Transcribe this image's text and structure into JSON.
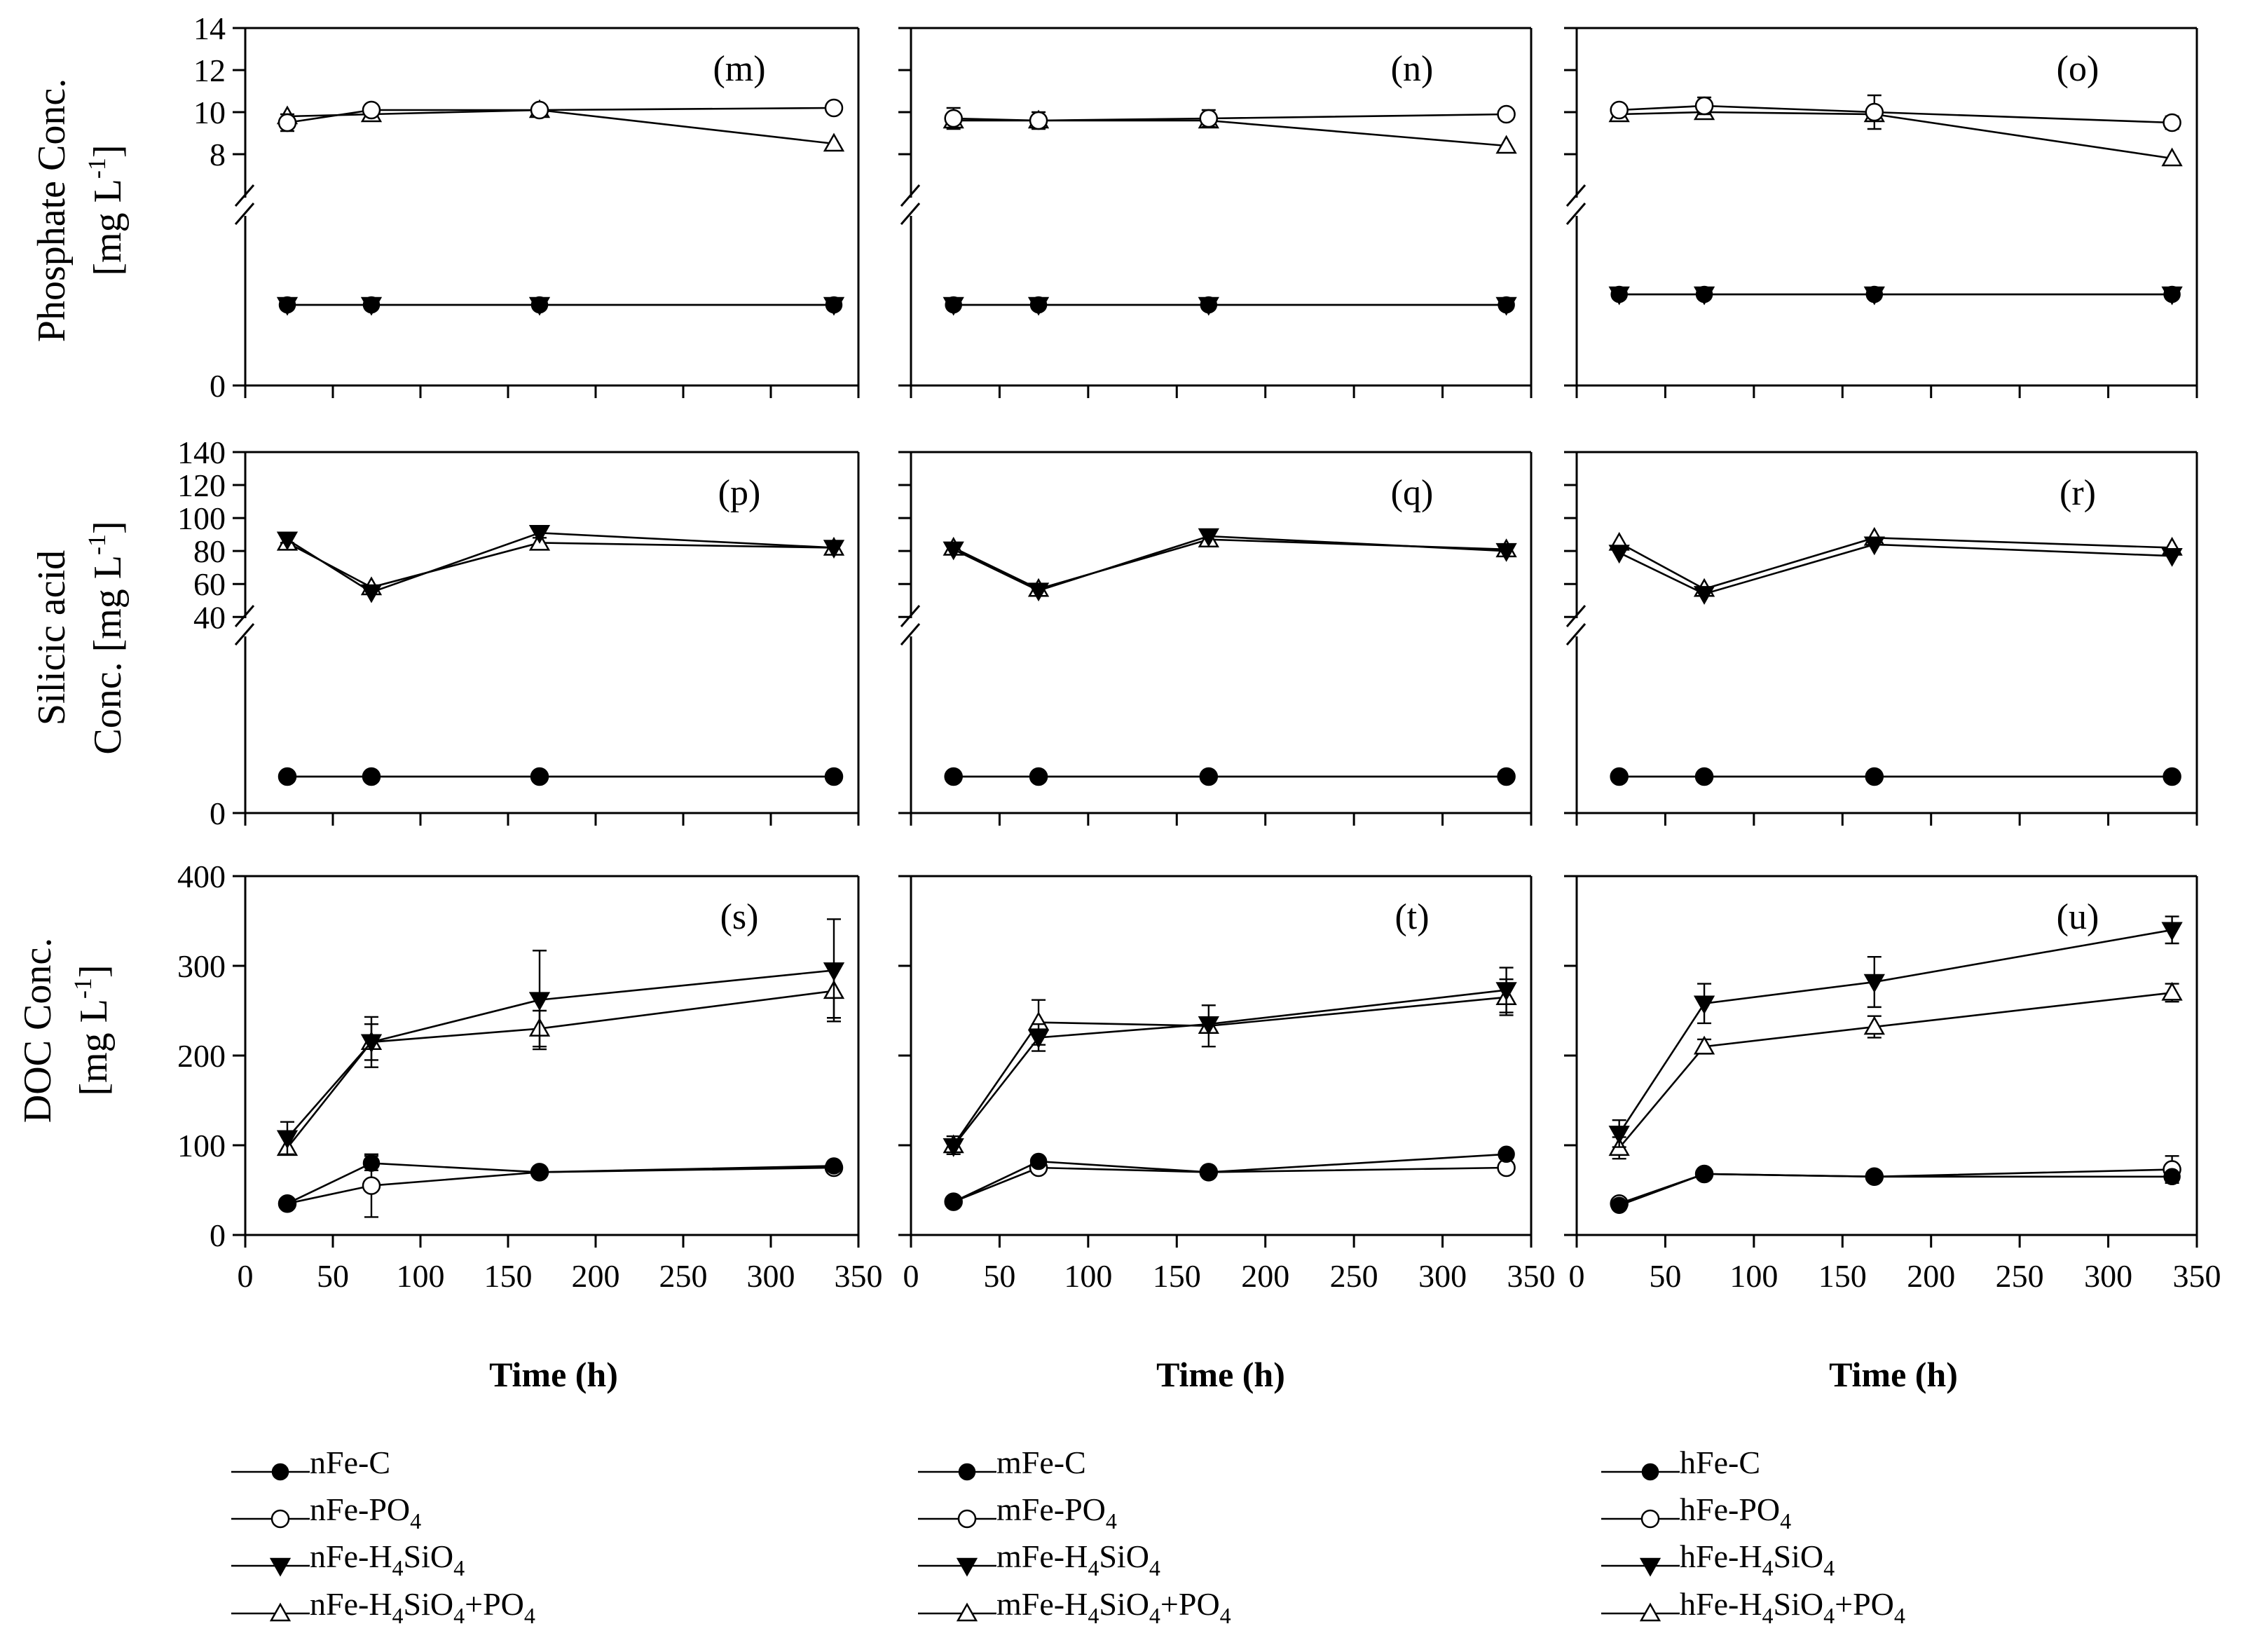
{
  "figure": {
    "x_axis_title": "Time (h)",
    "row_titles": [
      {
        "main": "Phosphate Conc.",
        "unit_pre": "[mg L",
        "unit_sup": "-1",
        "unit_post": "]"
      },
      {
        "main": "Silicic  acid",
        "unit_pre": "Conc. [mg L",
        "unit_sup": "-1",
        "unit_post": "]"
      },
      {
        "main": "DOC Conc.",
        "unit_pre": "[mg L",
        "unit_sup": "-1",
        "unit_post": "]"
      }
    ]
  },
  "chart_data": {
    "type": "line",
    "x": [
      24,
      72,
      168,
      336
    ],
    "xlim": [
      0,
      350
    ],
    "x_ticks": [
      0,
      50,
      100,
      150,
      200,
      250,
      300,
      350
    ],
    "rows": [
      {
        "name": "phosphate",
        "broken_axis": true,
        "upper_range": [
          7,
          14
        ],
        "upper_ticks": [
          8,
          10,
          12,
          14
        ],
        "lower_range": [
          0,
          2.5
        ],
        "lower_ticks": [
          0
        ]
      },
      {
        "name": "silicic",
        "broken_axis": true,
        "upper_range": [
          38,
          140
        ],
        "upper_ticks": [
          40,
          60,
          80,
          100,
          120,
          140
        ],
        "lower_range": [
          0,
          5
        ],
        "lower_ticks": [
          0
        ]
      },
      {
        "name": "doc",
        "broken_axis": false,
        "range": [
          0,
          400
        ],
        "ticks": [
          0,
          100,
          200,
          300,
          400
        ]
      }
    ],
    "panels": [
      {
        "label": "(m)",
        "row": 0,
        "col": 0,
        "series": [
          {
            "name": "nFe-C",
            "marker": "filled-circle",
            "values": [
              1.15,
              1.15,
              1.15,
              1.15
            ],
            "err": [
              0,
              0,
              0,
              0
            ]
          },
          {
            "name": "nFe-PO4",
            "marker": "open-circle",
            "values": [
              9.5,
              10.1,
              10.1,
              10.2
            ],
            "err": [
              0.4,
              0,
              0,
              0
            ]
          },
          {
            "name": "nFe-H4SiO4",
            "marker": "filled-triangle-down",
            "values": [
              1.15,
              1.15,
              1.15,
              1.15
            ],
            "err": [
              0,
              0,
              0,
              0
            ]
          },
          {
            "name": "nFe-H4SiO4+PO4",
            "marker": "open-triangle-up",
            "values": [
              9.8,
              9.9,
              10.1,
              8.5
            ],
            "err": [
              0,
              0,
              0,
              0
            ]
          }
        ]
      },
      {
        "label": "(n)",
        "row": 0,
        "col": 1,
        "series": [
          {
            "name": "mFe-C",
            "marker": "filled-circle",
            "values": [
              1.15,
              1.15,
              1.15,
              1.15
            ],
            "err": [
              0,
              0,
              0,
              0
            ]
          },
          {
            "name": "mFe-PO4",
            "marker": "open-circle",
            "values": [
              9.7,
              9.6,
              9.7,
              9.9
            ],
            "err": [
              0.5,
              0.4,
              0.4,
              0
            ]
          },
          {
            "name": "mFe-H4SiO4",
            "marker": "filled-triangle-down",
            "values": [
              1.15,
              1.15,
              1.15,
              1.15
            ],
            "err": [
              0,
              0,
              0,
              0
            ]
          },
          {
            "name": "mFe-H4SiO4+PO4",
            "marker": "open-triangle-up",
            "values": [
              9.6,
              9.6,
              9.6,
              8.4
            ],
            "err": [
              0,
              0,
              0,
              0
            ]
          }
        ]
      },
      {
        "label": "(o)",
        "row": 0,
        "col": 2,
        "series": [
          {
            "name": "hFe-C",
            "marker": "filled-circle",
            "values": [
              1.3,
              1.3,
              1.3,
              1.3
            ],
            "err": [
              0,
              0,
              0,
              0
            ]
          },
          {
            "name": "hFe-PO4",
            "marker": "open-circle",
            "values": [
              10.1,
              10.3,
              10.0,
              9.5
            ],
            "err": [
              0,
              0.4,
              0.8,
              0.3
            ]
          },
          {
            "name": "hFe-H4SiO4",
            "marker": "filled-triangle-down",
            "values": [
              1.3,
              1.3,
              1.3,
              1.3
            ],
            "err": [
              0,
              0,
              0,
              0
            ]
          },
          {
            "name": "hFe-H4SiO4+PO4",
            "marker": "open-triangle-up",
            "values": [
              9.9,
              10.0,
              9.9,
              7.8
            ],
            "err": [
              0,
              0,
              0,
              0
            ]
          }
        ]
      },
      {
        "label": "(p)",
        "row": 1,
        "col": 0,
        "series": [
          {
            "name": "nFe-C",
            "marker": "filled-circle",
            "values": [
              1.0,
              1.0,
              1.0,
              1.0
            ],
            "err": [
              0,
              0,
              0,
              0
            ]
          },
          {
            "name": "nFe-PO4",
            "marker": "open-circle",
            "values": [
              1.0,
              1.0,
              1.0,
              1.0
            ],
            "err": [
              0,
              0,
              0,
              0
            ]
          },
          {
            "name": "nFe-H4SiO4",
            "marker": "filled-triangle-down",
            "values": [
              87,
              55,
              91,
              82
            ],
            "err": [
              2,
              0,
              3,
              0
            ]
          },
          {
            "name": "nFe-H4SiO4+PO4",
            "marker": "open-triangle-up",
            "values": [
              85,
              58,
              85,
              82
            ],
            "err": [
              0,
              0,
              0,
              0
            ]
          }
        ]
      },
      {
        "label": "(q)",
        "row": 1,
        "col": 1,
        "series": [
          {
            "name": "mFe-C",
            "marker": "filled-circle",
            "values": [
              1.0,
              1.0,
              1.0,
              1.0
            ],
            "err": [
              0,
              0,
              0,
              0
            ]
          },
          {
            "name": "mFe-PO4",
            "marker": "open-circle",
            "values": [
              1.0,
              1.0,
              1.0,
              1.0
            ],
            "err": [
              0,
              0,
              0,
              0
            ]
          },
          {
            "name": "mFe-H4SiO4",
            "marker": "filled-triangle-down",
            "values": [
              81,
              56,
              89,
              80
            ],
            "err": [
              0,
              0,
              0,
              0
            ]
          },
          {
            "name": "mFe-H4SiO4+PO4",
            "marker": "open-triangle-up",
            "values": [
              82,
              57,
              87,
              81
            ],
            "err": [
              0,
              0,
              0,
              0
            ]
          }
        ]
      },
      {
        "label": "(r)",
        "row": 1,
        "col": 2,
        "series": [
          {
            "name": "hFe-C",
            "marker": "filled-circle",
            "values": [
              1.0,
              1.0,
              1.0,
              1.0
            ],
            "err": [
              0,
              0,
              0,
              0
            ]
          },
          {
            "name": "hFe-PO4",
            "marker": "open-circle",
            "values": [
              1.0,
              1.0,
              1.0,
              1.0
            ],
            "err": [
              0,
              0,
              0,
              0
            ]
          },
          {
            "name": "hFe-H4SiO4",
            "marker": "filled-triangle-down",
            "values": [
              79,
              54,
              84,
              77
            ],
            "err": [
              0,
              0,
              0,
              0
            ]
          },
          {
            "name": "hFe-H4SiO4+PO4",
            "marker": "open-triangle-up",
            "values": [
              85,
              57,
              88,
              82
            ],
            "err": [
              0,
              0,
              0,
              0
            ]
          }
        ]
      },
      {
        "label": "(s)",
        "row": 2,
        "col": 0,
        "series": [
          {
            "name": "nFe-C",
            "marker": "filled-circle",
            "values": [
              35,
              80,
              70,
              77
            ],
            "err": [
              0,
              8,
              0,
              0
            ]
          },
          {
            "name": "nFe-PO4",
            "marker": "open-circle",
            "values": [
              35,
              55,
              70,
              75
            ],
            "err": [
              0,
              35,
              0,
              0
            ]
          },
          {
            "name": "nFe-H4SiO4",
            "marker": "filled-triangle-down",
            "values": [
              108,
              215,
              262,
              295
            ],
            "err": [
              18,
              28,
              55,
              57
            ]
          },
          {
            "name": "nFe-H4SiO4+PO4",
            "marker": "open-triangle-up",
            "values": [
              97,
              215,
              230,
              272
            ],
            "err": [
              0,
              20,
              20,
              30
            ]
          }
        ]
      },
      {
        "label": "(t)",
        "row": 2,
        "col": 1,
        "series": [
          {
            "name": "mFe-C",
            "marker": "filled-circle",
            "values": [
              37,
              82,
              70,
              90
            ],
            "err": [
              0,
              0,
              0,
              0
            ]
          },
          {
            "name": "mFe-PO4",
            "marker": "open-circle",
            "values": [
              37,
              75,
              70,
              75
            ],
            "err": [
              0,
              0,
              0,
              0
            ]
          },
          {
            "name": "mFe-H4SiO4",
            "marker": "filled-triangle-down",
            "values": [
              99,
              220,
              235,
              273
            ],
            "err": [
              0,
              15,
              0,
              25
            ]
          },
          {
            "name": "mFe-H4SiO4+PO4",
            "marker": "open-triangle-up",
            "values": [
              100,
              237,
              233,
              265
            ],
            "err": [
              10,
              25,
              23,
              20
            ]
          }
        ]
      },
      {
        "label": "(u)",
        "row": 2,
        "col": 2,
        "series": [
          {
            "name": "hFe-C",
            "marker": "filled-circle",
            "values": [
              33,
              68,
              65,
              65
            ],
            "err": [
              0,
              0,
              0,
              0
            ]
          },
          {
            "name": "hFe-PO4",
            "marker": "open-circle",
            "values": [
              35,
              68,
              65,
              73
            ],
            "err": [
              0,
              0,
              0,
              15
            ]
          },
          {
            "name": "hFe-H4SiO4",
            "marker": "filled-triangle-down",
            "values": [
              113,
              258,
              282,
              340
            ],
            "err": [
              15,
              22,
              28,
              15
            ]
          },
          {
            "name": "hFe-H4SiO4+PO4",
            "marker": "open-triangle-up",
            "values": [
              97,
              210,
              232,
              270
            ],
            "err": [
              12,
              8,
              12,
              10
            ]
          }
        ]
      }
    ],
    "legend": [
      [
        {
          "base": "nFe-C",
          "sub1": "",
          "mid": "",
          "sub2": "",
          "tail": "",
          "marker": "filled-circle"
        },
        {
          "base": "nFe-PO",
          "sub1": "4",
          "mid": "",
          "sub2": "",
          "tail": "",
          "marker": "open-circle"
        },
        {
          "base": "nFe-H",
          "sub1": "4",
          "mid": "SiO",
          "sub2": "4",
          "tail": "",
          "marker": "filled-triangle-down"
        },
        {
          "base": "nFe-H",
          "sub1": "4",
          "mid": "SiO",
          "sub2": "4",
          "tail": "+PO4",
          "marker": "open-triangle-up"
        }
      ],
      [
        {
          "base": "mFe-C",
          "sub1": "",
          "mid": "",
          "sub2": "",
          "tail": "",
          "marker": "filled-circle"
        },
        {
          "base": "mFe-PO",
          "sub1": "4",
          "mid": "",
          "sub2": "",
          "tail": "",
          "marker": "open-circle"
        },
        {
          "base": "mFe-H",
          "sub1": "4",
          "mid": "SiO",
          "sub2": "4",
          "tail": "",
          "marker": "filled-triangle-down"
        },
        {
          "base": "mFe-H",
          "sub1": "4",
          "mid": "SiO",
          "sub2": "4",
          "tail": "+PO4",
          "marker": "open-triangle-up"
        }
      ],
      [
        {
          "base": "hFe-C",
          "sub1": "",
          "mid": "",
          "sub2": "",
          "tail": "",
          "marker": "filled-circle"
        },
        {
          "base": "hFe-PO",
          "sub1": "4",
          "mid": "",
          "sub2": "",
          "tail": "",
          "marker": "open-circle"
        },
        {
          "base": "hFe-H",
          "sub1": "4",
          "mid": "SiO",
          "sub2": "4",
          "tail": "",
          "marker": "filled-triangle-down"
        },
        {
          "base": "hFe-H",
          "sub1": "4",
          "mid": "SiO",
          "sub2": "4",
          "tail": "+PO4",
          "marker": "open-triangle-up"
        }
      ]
    ]
  }
}
